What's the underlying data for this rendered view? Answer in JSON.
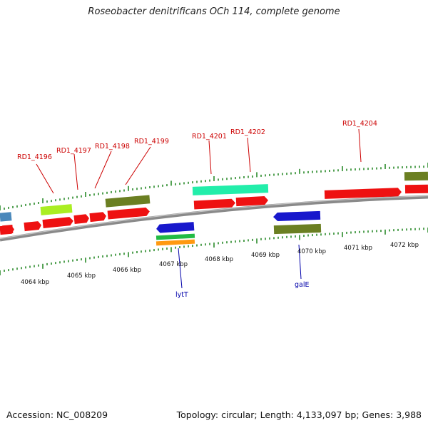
{
  "title": "Roseobacter denitrificans OCh 114, complete genome",
  "footer": {
    "accession": "Accession: NC_008209",
    "summary": "Topology: circular; Length: 4,133,097 bp; Genes: 3,988"
  },
  "scale_labels": [
    "4064 kbp",
    "4065 kbp",
    "4066 kbp",
    "4067 kbp",
    "4068 kbp",
    "4069 kbp",
    "4070 kbp",
    "4071 kbp",
    "4072 kbp"
  ],
  "gene_labels_forward": [
    "RD1_4196",
    "RD1_4197",
    "RD1_4198",
    "RD1_4199",
    "RD1_4201",
    "RD1_4202",
    "RD1_4204"
  ],
  "gene_labels_reverse": [
    "lytT",
    "galE"
  ],
  "colors": {
    "backbone": "#808080",
    "tick": "#2a8a2a",
    "cds_red": "#ee1111",
    "cds_blue": "#1818cc",
    "cds_olive": "#6b7f22",
    "cds_lime": "#aaee22",
    "cds_aqua": "#22eeaa",
    "cds_green": "#22bb44",
    "cds_orange": "#ff9911",
    "cds_steel": "#4a88bb"
  }
}
